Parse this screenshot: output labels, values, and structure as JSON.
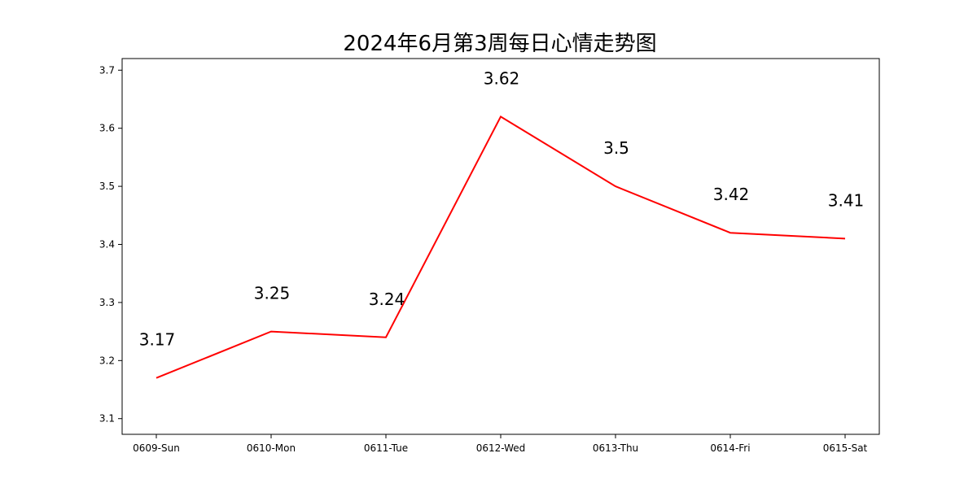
{
  "chart_data": {
    "type": "line",
    "title": "2024年6月第3周每日心情走势图",
    "xlabel": "",
    "ylabel": "",
    "categories": [
      "0609-Sun",
      "0610-Mon",
      "0611-Tue",
      "0612-Wed",
      "0613-Thu",
      "0614-Fri",
      "0615-Sat"
    ],
    "series": [
      {
        "values": [
          3.17,
          3.25,
          3.24,
          3.62,
          3.5,
          3.42,
          3.41
        ],
        "color": "#ff0000"
      }
    ],
    "data_labels": [
      "3.17",
      "3.25",
      "3.24",
      "3.62",
      "3.5",
      "3.42",
      "3.41"
    ],
    "ylim": [
      3.073,
      3.72
    ],
    "yticks": [
      3.1,
      3.2,
      3.3,
      3.4,
      3.5,
      3.6,
      3.7
    ],
    "ytick_labels": [
      "3.1",
      "3.2",
      "3.3",
      "3.4",
      "3.5",
      "3.6",
      "3.7"
    ],
    "grid": false,
    "legend": "none"
  }
}
